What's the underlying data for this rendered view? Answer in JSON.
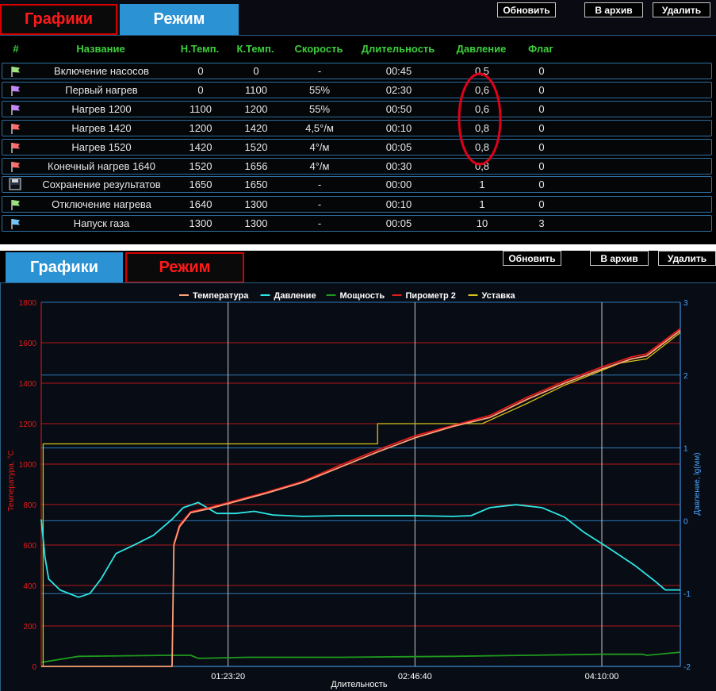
{
  "top": {
    "tabs": [
      {
        "label": "Графики"
      },
      {
        "label": "Режим"
      }
    ],
    "buttons": {
      "refresh": "Обновить",
      "archive": "В архив",
      "delete": "Удалить"
    },
    "table": {
      "headers": [
        "#",
        "Название",
        "Н.Темп.",
        "К.Темп.",
        "Скорость",
        "Длительность",
        "Давление",
        "Флаг"
      ],
      "rows": [
        {
          "icon": "green-flag-icon",
          "color": "#9be37a",
          "name": "Включение насосов",
          "t_start": "0",
          "t_end": "0",
          "speed": "-",
          "duration": "00:45",
          "pressure": "0,5",
          "flag": "0"
        },
        {
          "icon": "purple-flag-icon",
          "color": "#c483ff",
          "name": "Первый нагрев",
          "t_start": "0",
          "t_end": "1100",
          "speed": "55%",
          "duration": "02:30",
          "pressure": "0,6",
          "flag": "0"
        },
        {
          "icon": "purple-flag-icon",
          "color": "#c483ff",
          "name": "Нагрев 1200",
          "t_start": "1100",
          "t_end": "1200",
          "speed": "55%",
          "duration": "00:50",
          "pressure": "0,6",
          "flag": "0"
        },
        {
          "icon": "red-flag-icon",
          "color": "#ff6b6b",
          "name": "Нагрев 1420",
          "t_start": "1200",
          "t_end": "1420",
          "speed": "4,5°/м",
          "duration": "00:10",
          "pressure": "0,8",
          "flag": "0"
        },
        {
          "icon": "red-flag-icon",
          "color": "#ff6b6b",
          "name": "Нагрев 1520",
          "t_start": "1420",
          "t_end": "1520",
          "speed": "4°/м",
          "duration": "00:05",
          "pressure": "0,8",
          "flag": "0"
        },
        {
          "icon": "red-flag-icon",
          "color": "#ff6b6b",
          "name": "Конечный нагрев 1640",
          "t_start": "1520",
          "t_end": "1656",
          "speed": "4°/м",
          "duration": "00:30",
          "pressure": "0,8",
          "flag": "0"
        },
        {
          "icon": "floppy-disk-icon",
          "color": "#cfd6e0",
          "name": "Сохранение результатов",
          "t_start": "1650",
          "t_end": "1650",
          "speed": "-",
          "duration": "00:00",
          "pressure": "1",
          "flag": "0"
        },
        {
          "icon": "green-flag-icon",
          "color": "#9be37a",
          "name": "Отключение нагрева",
          "t_start": "1640",
          "t_end": "1300",
          "speed": "-",
          "duration": "00:10",
          "pressure": "1",
          "flag": "0"
        },
        {
          "icon": "blue-flag-icon",
          "color": "#6fc6ff",
          "name": "Напуск газа",
          "t_start": "1300",
          "t_end": "1300",
          "speed": "-",
          "duration": "00:05",
          "pressure": "10",
          "flag": "3"
        }
      ]
    }
  },
  "bottom": {
    "tabs": [
      {
        "label": "Графики"
      },
      {
        "label": "Режим"
      }
    ],
    "buttons": {
      "refresh": "Обновить",
      "archive": "В архив",
      "delete": "Удалить"
    }
  },
  "colors": {
    "temperature": "#ffa07a",
    "pressure": "#2ee6e6",
    "power": "#1f9a1f",
    "pyrometer": "#e31c1c",
    "setpoint": "#d6c31a",
    "annotation": "#e0001a"
  },
  "chart_data": {
    "type": "line",
    "legend": [
      "Температура",
      "Давление",
      "Мощность",
      "Пирометр 2",
      "Уставка"
    ],
    "xlabel": "Длительность",
    "x_ticks": [
      "01:23:20",
      "02:46:40",
      "04:10:00"
    ],
    "x_range_seconds": [
      0,
      17100
    ],
    "y_left": {
      "label": "Температура, °C",
      "ticks": [
        0,
        200,
        400,
        600,
        800,
        1000,
        1200,
        1400,
        1600,
        1800
      ],
      "range": [
        0,
        1800
      ]
    },
    "y_right": {
      "label": "Давление, lg(мм)",
      "ticks": [
        -2,
        -1,
        0,
        1,
        2,
        3
      ],
      "range": [
        -2,
        3
      ]
    },
    "series": [
      {
        "name": "Температура",
        "axis": "left",
        "points": [
          [
            0,
            0
          ],
          [
            3400,
            0
          ],
          [
            3500,
            0
          ],
          [
            3550,
            600
          ],
          [
            3700,
            690
          ],
          [
            4000,
            760
          ],
          [
            4500,
            780
          ],
          [
            5000,
            805
          ],
          [
            6000,
            855
          ],
          [
            7000,
            910
          ],
          [
            8000,
            985
          ],
          [
            9000,
            1060
          ],
          [
            10000,
            1130
          ],
          [
            11000,
            1185
          ],
          [
            12000,
            1230
          ],
          [
            13000,
            1320
          ],
          [
            14000,
            1400
          ],
          [
            15000,
            1470
          ],
          [
            15800,
            1520
          ],
          [
            16200,
            1535
          ],
          [
            17100,
            1660
          ]
        ]
      },
      {
        "name": "Пирометр 2",
        "axis": "left",
        "points": [
          [
            3550,
            605
          ],
          [
            3700,
            700
          ],
          [
            4000,
            765
          ],
          [
            4500,
            785
          ],
          [
            5000,
            810
          ],
          [
            6000,
            860
          ],
          [
            7000,
            915
          ],
          [
            8000,
            995
          ],
          [
            9000,
            1070
          ],
          [
            10000,
            1140
          ],
          [
            11000,
            1190
          ],
          [
            12000,
            1240
          ],
          [
            13000,
            1330
          ],
          [
            14000,
            1410
          ],
          [
            15000,
            1480
          ],
          [
            15800,
            1530
          ],
          [
            16200,
            1545
          ],
          [
            17100,
            1670
          ]
        ]
      },
      {
        "name": "Уставка",
        "axis": "left",
        "points": [
          [
            0,
            0
          ],
          [
            50,
            0
          ],
          [
            50,
            1100
          ],
          [
            9000,
            1100
          ],
          [
            9000,
            1200
          ],
          [
            11800,
            1200
          ],
          [
            13000,
            1300
          ],
          [
            14000,
            1390
          ],
          [
            15500,
            1500
          ],
          [
            16200,
            1520
          ],
          [
            17100,
            1650
          ]
        ]
      },
      {
        "name": "Мощность",
        "axis": "left",
        "points": [
          [
            0,
            20
          ],
          [
            1000,
            50
          ],
          [
            3400,
            55
          ],
          [
            4000,
            55
          ],
          [
            4200,
            40
          ],
          [
            5500,
            45
          ],
          [
            8000,
            45
          ],
          [
            11000,
            50
          ],
          [
            13000,
            55
          ],
          [
            15000,
            60
          ],
          [
            16100,
            60
          ],
          [
            16200,
            55
          ],
          [
            17100,
            70
          ]
        ]
      },
      {
        "name": "Давление",
        "axis": "right",
        "points": [
          [
            0,
            0.02
          ],
          [
            100,
            -0.5
          ],
          [
            200,
            -0.8
          ],
          [
            500,
            -0.95
          ],
          [
            1000,
            -1.05
          ],
          [
            1300,
            -1.0
          ],
          [
            1600,
            -0.8
          ],
          [
            2000,
            -0.45
          ],
          [
            2500,
            -0.33
          ],
          [
            3000,
            -0.2
          ],
          [
            3500,
            0.02
          ],
          [
            3800,
            0.18
          ],
          [
            4200,
            0.25
          ],
          [
            4700,
            0.1
          ],
          [
            5200,
            0.1
          ],
          [
            5700,
            0.13
          ],
          [
            6200,
            0.08
          ],
          [
            7000,
            0.06
          ],
          [
            8000,
            0.07
          ],
          [
            9000,
            0.07
          ],
          [
            10000,
            0.07
          ],
          [
            11000,
            0.06
          ],
          [
            11500,
            0.07
          ],
          [
            12000,
            0.18
          ],
          [
            12700,
            0.22
          ],
          [
            13400,
            0.18
          ],
          [
            14000,
            0.05
          ],
          [
            14500,
            -0.15
          ],
          [
            15200,
            -0.38
          ],
          [
            15900,
            -0.62
          ],
          [
            16400,
            -0.82
          ],
          [
            16700,
            -0.95
          ],
          [
            17100,
            -0.95
          ]
        ]
      }
    ]
  }
}
